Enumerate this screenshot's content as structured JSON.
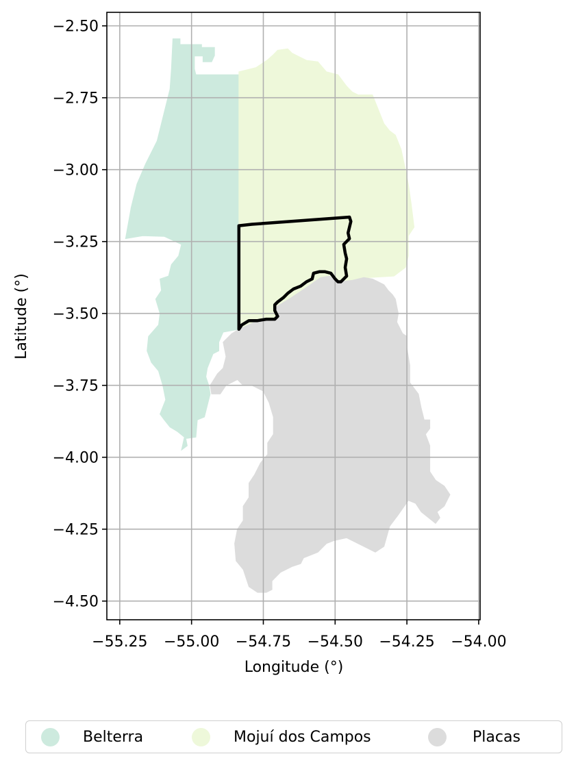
{
  "chart_data": {
    "type": "map",
    "xlabel": "Longitude (°)",
    "ylabel": "Latitude (°)",
    "xlim": [
      -55.295,
      -53.995
    ],
    "ylim": [
      -4.565,
      -2.453
    ],
    "xticks": [
      -55.25,
      -55.0,
      -54.75,
      -54.5,
      -54.25,
      -54.0
    ],
    "xtick_labels": [
      "−55.25",
      "−55.00",
      "−54.75",
      "−54.50",
      "−54.25",
      "−54.00"
    ],
    "yticks": [
      -2.5,
      -2.75,
      -3.0,
      -3.25,
      -3.5,
      -3.75,
      -4.0,
      -4.25,
      -4.5
    ],
    "ytick_labels": [
      "−2.50",
      "−2.75",
      "−3.00",
      "−3.25",
      "−3.50",
      "−3.75",
      "−4.00",
      "−4.25",
      "−4.50"
    ],
    "grid": true,
    "legend_position": "bottom",
    "regions": [
      {
        "name": "Belterra",
        "color": "#cdeade",
        "polygon": [
          [
            -55.065,
            -2.545
          ],
          [
            -55.04,
            -2.545
          ],
          [
            -55.04,
            -2.565
          ],
          [
            -54.965,
            -2.565
          ],
          [
            -54.965,
            -2.575
          ],
          [
            -54.92,
            -2.575
          ],
          [
            -54.92,
            -2.603
          ],
          [
            -54.93,
            -2.625
          ],
          [
            -54.96,
            -2.625
          ],
          [
            -54.96,
            -2.605
          ],
          [
            -54.99,
            -2.605
          ],
          [
            -54.99,
            -2.65
          ],
          [
            -54.985,
            -2.67
          ],
          [
            -54.83,
            -2.67
          ],
          [
            -54.83,
            -3.2
          ],
          [
            -54.835,
            -3.555
          ],
          [
            -54.89,
            -3.565
          ],
          [
            -54.905,
            -3.6
          ],
          [
            -54.905,
            -3.63
          ],
          [
            -54.925,
            -3.64
          ],
          [
            -54.945,
            -3.69
          ],
          [
            -54.95,
            -3.72
          ],
          [
            -54.94,
            -3.75
          ],
          [
            -54.935,
            -3.78
          ],
          [
            -54.945,
            -3.82
          ],
          [
            -54.955,
            -3.86
          ],
          [
            -54.98,
            -3.87
          ],
          [
            -54.985,
            -3.93
          ],
          [
            -55.02,
            -3.935
          ],
          [
            -55.015,
            -3.96
          ],
          [
            -55.035,
            -3.975
          ],
          [
            -55.025,
            -3.93
          ],
          [
            -55.05,
            -3.91
          ],
          [
            -55.075,
            -3.895
          ],
          [
            -55.095,
            -3.87
          ],
          [
            -55.11,
            -3.85
          ],
          [
            -55.09,
            -3.8
          ],
          [
            -55.1,
            -3.75
          ],
          [
            -55.115,
            -3.7
          ],
          [
            -55.14,
            -3.67
          ],
          [
            -55.155,
            -3.63
          ],
          [
            -55.15,
            -3.58
          ],
          [
            -55.115,
            -3.54
          ],
          [
            -55.11,
            -3.5
          ],
          [
            -55.125,
            -3.45
          ],
          [
            -55.105,
            -3.42
          ],
          [
            -55.11,
            -3.38
          ],
          [
            -55.08,
            -3.37
          ],
          [
            -55.07,
            -3.33
          ],
          [
            -55.045,
            -3.3
          ],
          [
            -55.035,
            -3.26
          ],
          [
            -55.095,
            -3.232
          ],
          [
            -55.17,
            -3.23
          ],
          [
            -55.23,
            -3.24
          ],
          [
            -55.21,
            -3.13
          ],
          [
            -55.19,
            -3.05
          ],
          [
            -55.16,
            -2.98
          ],
          [
            -55.12,
            -2.9
          ],
          [
            -55.095,
            -2.8
          ],
          [
            -55.075,
            -2.72
          ],
          [
            -55.07,
            -2.65
          ],
          [
            -55.065,
            -2.545
          ]
        ]
      },
      {
        "name": "Mojuí dos Campos",
        "color": "#eef8da",
        "polygon": [
          [
            -54.835,
            -2.66
          ],
          [
            -54.775,
            -2.645
          ],
          [
            -54.735,
            -2.618
          ],
          [
            -54.715,
            -2.6
          ],
          [
            -54.7,
            -2.585
          ],
          [
            -54.665,
            -2.58
          ],
          [
            -54.65,
            -2.595
          ],
          [
            -54.62,
            -2.61
          ],
          [
            -54.6,
            -2.62
          ],
          [
            -54.56,
            -2.625
          ],
          [
            -54.53,
            -2.66
          ],
          [
            -54.49,
            -2.67
          ],
          [
            -54.46,
            -2.71
          ],
          [
            -54.44,
            -2.73
          ],
          [
            -54.42,
            -2.74
          ],
          [
            -54.395,
            -2.74
          ],
          [
            -54.37,
            -2.74
          ],
          [
            -54.35,
            -2.79
          ],
          [
            -54.33,
            -2.84
          ],
          [
            -54.31,
            -2.865
          ],
          [
            -54.29,
            -2.88
          ],
          [
            -54.27,
            -2.93
          ],
          [
            -54.255,
            -3.0
          ],
          [
            -54.245,
            -3.05
          ],
          [
            -54.235,
            -3.12
          ],
          [
            -54.225,
            -3.2
          ],
          [
            -54.245,
            -3.23
          ],
          [
            -54.245,
            -3.3
          ],
          [
            -54.255,
            -3.34
          ],
          [
            -54.295,
            -3.37
          ],
          [
            -54.38,
            -3.375
          ],
          [
            -54.44,
            -3.385
          ],
          [
            -54.49,
            -3.39
          ],
          [
            -54.52,
            -3.37
          ],
          [
            -54.55,
            -3.375
          ],
          [
            -54.6,
            -3.41
          ],
          [
            -54.66,
            -3.45
          ],
          [
            -54.71,
            -3.48
          ],
          [
            -54.7,
            -3.52
          ],
          [
            -54.78,
            -3.53
          ],
          [
            -54.835,
            -3.555
          ],
          [
            -54.835,
            -2.66
          ]
        ]
      },
      {
        "name": "Placas",
        "color": "#dcdcdc",
        "polygon": [
          [
            -54.835,
            -3.555
          ],
          [
            -54.78,
            -3.53
          ],
          [
            -54.7,
            -3.52
          ],
          [
            -54.71,
            -3.48
          ],
          [
            -54.66,
            -3.45
          ],
          [
            -54.6,
            -3.41
          ],
          [
            -54.55,
            -3.375
          ],
          [
            -54.52,
            -3.37
          ],
          [
            -54.49,
            -3.39
          ],
          [
            -54.44,
            -3.385
          ],
          [
            -54.4,
            -3.375
          ],
          [
            -54.37,
            -3.38
          ],
          [
            -54.35,
            -3.39
          ],
          [
            -54.33,
            -3.4
          ],
          [
            -54.315,
            -3.42
          ],
          [
            -54.3,
            -3.435
          ],
          [
            -54.29,
            -3.45
          ],
          [
            -54.28,
            -3.5
          ],
          [
            -54.285,
            -3.53
          ],
          [
            -54.265,
            -3.57
          ],
          [
            -54.25,
            -3.58
          ],
          [
            -54.25,
            -3.62
          ],
          [
            -54.24,
            -3.68
          ],
          [
            -54.24,
            -3.74
          ],
          [
            -54.21,
            -3.78
          ],
          [
            -54.2,
            -3.83
          ],
          [
            -54.19,
            -3.87
          ],
          [
            -54.17,
            -3.87
          ],
          [
            -54.17,
            -3.9
          ],
          [
            -54.185,
            -3.92
          ],
          [
            -54.17,
            -3.96
          ],
          [
            -54.17,
            -4.02
          ],
          [
            -54.17,
            -4.05
          ],
          [
            -54.15,
            -4.08
          ],
          [
            -54.12,
            -4.1
          ],
          [
            -54.1,
            -4.13
          ],
          [
            -54.12,
            -4.17
          ],
          [
            -54.145,
            -4.19
          ],
          [
            -54.135,
            -4.21
          ],
          [
            -54.15,
            -4.23
          ],
          [
            -54.175,
            -4.21
          ],
          [
            -54.2,
            -4.19
          ],
          [
            -54.22,
            -4.16
          ],
          [
            -54.245,
            -4.15
          ],
          [
            -54.28,
            -4.2
          ],
          [
            -54.31,
            -4.24
          ],
          [
            -54.33,
            -4.31
          ],
          [
            -54.36,
            -4.33
          ],
          [
            -54.42,
            -4.3
          ],
          [
            -54.46,
            -4.28
          ],
          [
            -54.505,
            -4.29
          ],
          [
            -54.53,
            -4.3
          ],
          [
            -54.56,
            -4.33
          ],
          [
            -54.61,
            -4.35
          ],
          [
            -54.62,
            -4.37
          ],
          [
            -54.65,
            -4.38
          ],
          [
            -54.69,
            -4.4
          ],
          [
            -54.72,
            -4.43
          ],
          [
            -54.72,
            -4.46
          ],
          [
            -54.74,
            -4.47
          ],
          [
            -54.77,
            -4.47
          ],
          [
            -54.8,
            -4.45
          ],
          [
            -54.82,
            -4.39
          ],
          [
            -54.845,
            -4.36
          ],
          [
            -54.85,
            -4.3
          ],
          [
            -54.84,
            -4.25
          ],
          [
            -54.82,
            -4.22
          ],
          [
            -54.82,
            -4.17
          ],
          [
            -54.8,
            -4.14
          ],
          [
            -54.8,
            -4.09
          ],
          [
            -54.78,
            -4.06
          ],
          [
            -54.76,
            -4.02
          ],
          [
            -54.735,
            -3.99
          ],
          [
            -54.735,
            -3.95
          ],
          [
            -54.715,
            -3.92
          ],
          [
            -54.715,
            -3.86
          ],
          [
            -54.73,
            -3.81
          ],
          [
            -54.75,
            -3.77
          ],
          [
            -54.79,
            -3.75
          ],
          [
            -54.82,
            -3.75
          ],
          [
            -54.84,
            -3.73
          ],
          [
            -54.88,
            -3.75
          ],
          [
            -54.9,
            -3.78
          ],
          [
            -54.93,
            -3.78
          ],
          [
            -54.935,
            -3.75
          ],
          [
            -54.91,
            -3.71
          ],
          [
            -54.89,
            -3.69
          ],
          [
            -54.88,
            -3.65
          ],
          [
            -54.89,
            -3.6
          ],
          [
            -54.86,
            -3.57
          ],
          [
            -54.835,
            -3.555
          ]
        ]
      }
    ],
    "boundary": {
      "color": "#000000",
      "polyline": [
        [
          -54.835,
          -3.555
        ],
        [
          -54.835,
          -3.195
        ],
        [
          -54.79,
          -3.19
        ],
        [
          -54.45,
          -3.165
        ],
        [
          -54.445,
          -3.18
        ],
        [
          -54.455,
          -3.22
        ],
        [
          -54.45,
          -3.24
        ],
        [
          -54.47,
          -3.26
        ],
        [
          -54.465,
          -3.29
        ],
        [
          -54.46,
          -3.31
        ],
        [
          -54.465,
          -3.34
        ],
        [
          -54.46,
          -3.37
        ],
        [
          -54.47,
          -3.38
        ],
        [
          -54.48,
          -3.39
        ],
        [
          -54.49,
          -3.39
        ],
        [
          -54.5,
          -3.38
        ],
        [
          -54.515,
          -3.36
        ],
        [
          -54.535,
          -3.355
        ],
        [
          -54.555,
          -3.355
        ],
        [
          -54.575,
          -3.36
        ],
        [
          -54.58,
          -3.38
        ],
        [
          -54.6,
          -3.39
        ],
        [
          -54.62,
          -3.405
        ],
        [
          -54.645,
          -3.415
        ],
        [
          -54.665,
          -3.43
        ],
        [
          -54.68,
          -3.445
        ],
        [
          -54.7,
          -3.46
        ],
        [
          -54.71,
          -3.47
        ],
        [
          -54.71,
          -3.49
        ],
        [
          -54.7,
          -3.51
        ],
        [
          -54.71,
          -3.52
        ],
        [
          -54.74,
          -3.52
        ],
        [
          -54.77,
          -3.525
        ],
        [
          -54.8,
          -3.525
        ],
        [
          -54.825,
          -3.54
        ],
        [
          -54.835,
          -3.555
        ]
      ]
    },
    "legend": [
      {
        "label": "Belterra",
        "color": "#cdeade"
      },
      {
        "label": "Mojuí dos Campos",
        "color": "#eef8da"
      },
      {
        "label": "Placas",
        "color": "#dcdcdc"
      }
    ]
  }
}
